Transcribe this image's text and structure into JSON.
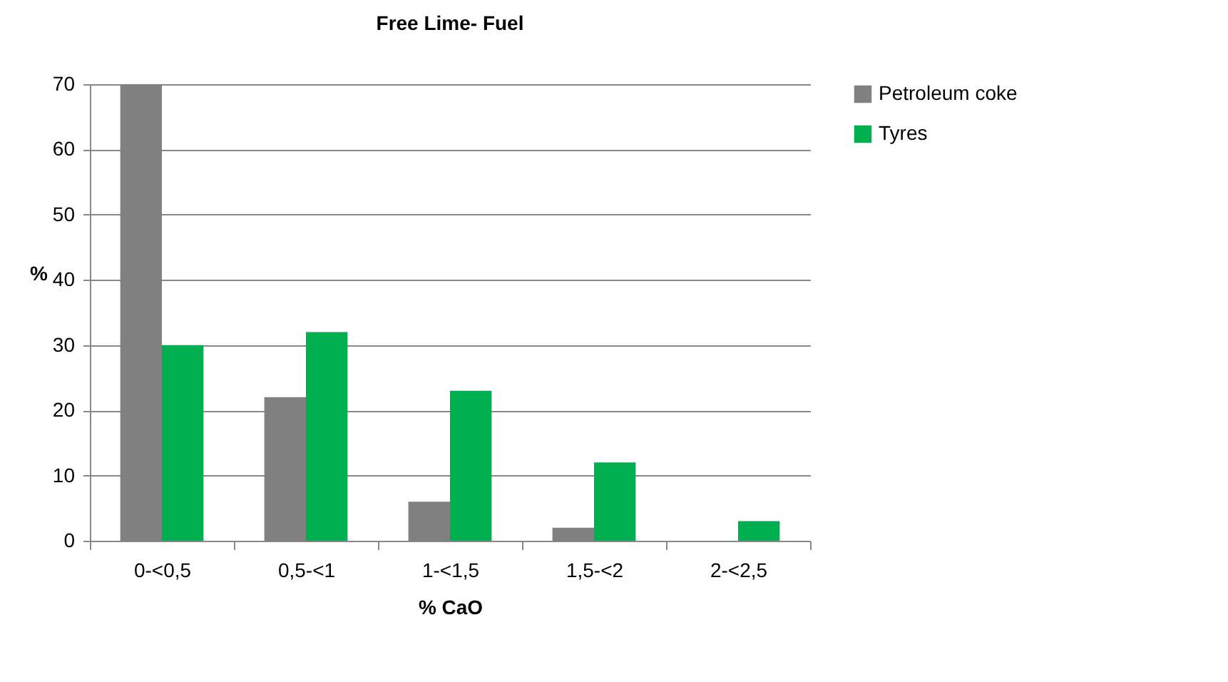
{
  "chart_data": {
    "type": "bar",
    "title": "Free Lime- Fuel",
    "xlabel": "% CaO",
    "ylabel": "%",
    "categories": [
      "0-<0,5",
      "0,5-<1",
      "1-<1,5",
      "1,5-<2",
      "2-<2,5"
    ],
    "series": [
      {
        "name": "Petroleum coke",
        "color": "#808080",
        "values": [
          70,
          22,
          6,
          2,
          0
        ]
      },
      {
        "name": "Tyres",
        "color": "#00b050",
        "values": [
          30,
          32,
          23,
          12,
          3
        ]
      }
    ],
    "ylim": [
      0,
      70
    ],
    "yticks": [
      0,
      10,
      20,
      30,
      40,
      50,
      60,
      70
    ],
    "grid": "y",
    "legend": "right"
  }
}
